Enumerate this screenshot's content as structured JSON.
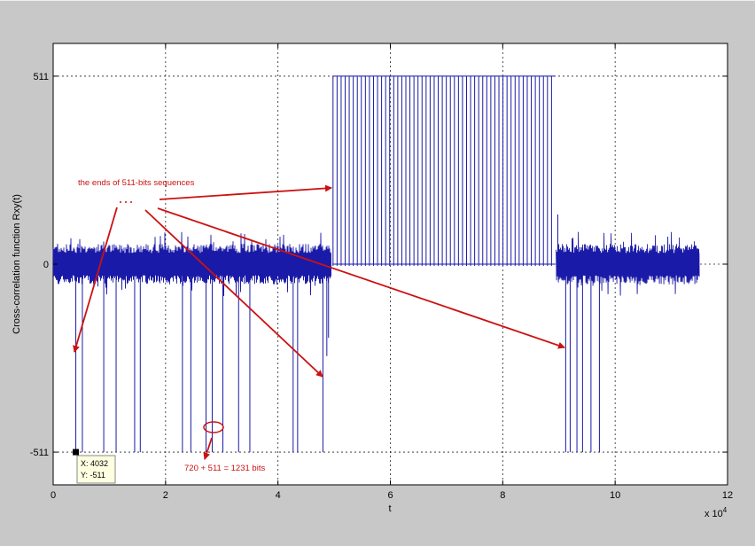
{
  "chart_data": {
    "type": "line",
    "title": "",
    "xlabel": "t",
    "ylabel": "Cross-correlation function Rxy(t)",
    "x_exponent_label": "x 10",
    "x_exponent_power": "4",
    "xlim": [
      0,
      12
    ],
    "ylim": [
      -600,
      600
    ],
    "x_ticks": [
      0,
      2,
      4,
      6,
      8,
      10,
      12
    ],
    "x_tick_labels": [
      "0",
      "2",
      "4",
      "6",
      "8",
      "10",
      "12"
    ],
    "y_ticks": [
      -511,
      0,
      511
    ],
    "y_tick_labels": [
      "-511",
      "0",
      "511"
    ],
    "grid": true,
    "series": [
      {
        "color": "#1a1aa8",
        "noise_bands": [
          {
            "x_start": 0.0,
            "x_end": 4.95,
            "amplitude": 55
          },
          {
            "x_start": 8.95,
            "x_end": 11.5,
            "amplitude": 55
          }
        ],
        "negative_spikes_x": [
          0.403,
          0.52,
          0.9,
          1.12,
          1.45,
          1.55,
          2.3,
          2.45,
          2.72,
          2.83,
          3.02,
          3.3,
          3.5,
          4.27,
          4.35,
          4.8,
          9.12,
          9.2,
          9.32,
          9.42,
          9.57,
          9.72
        ],
        "negative_spike_value": -511,
        "short_spikes": [
          {
            "x": 4.87,
            "value": -250
          },
          {
            "x": 4.9,
            "value": -200
          }
        ],
        "positive_pulse_region": {
          "x_start": 4.98,
          "x_end": 8.93,
          "value": 511,
          "period": 0.072
        },
        "tall_spike": {
          "x": 8.98,
          "value": 135
        }
      }
    ],
    "annotations": [
      {
        "text": "the ends of 511-bits sequences"
      },
      {
        "text": "720 + 511 = 1231 bits"
      }
    ],
    "datatip": {
      "x_label": "X: 4032",
      "y_label": "Y: -511",
      "x": 0.4032,
      "y": -511
    },
    "colors": {
      "annotation": "#cc1111",
      "line": "#1a1aa8",
      "grid": "#222222"
    }
  }
}
